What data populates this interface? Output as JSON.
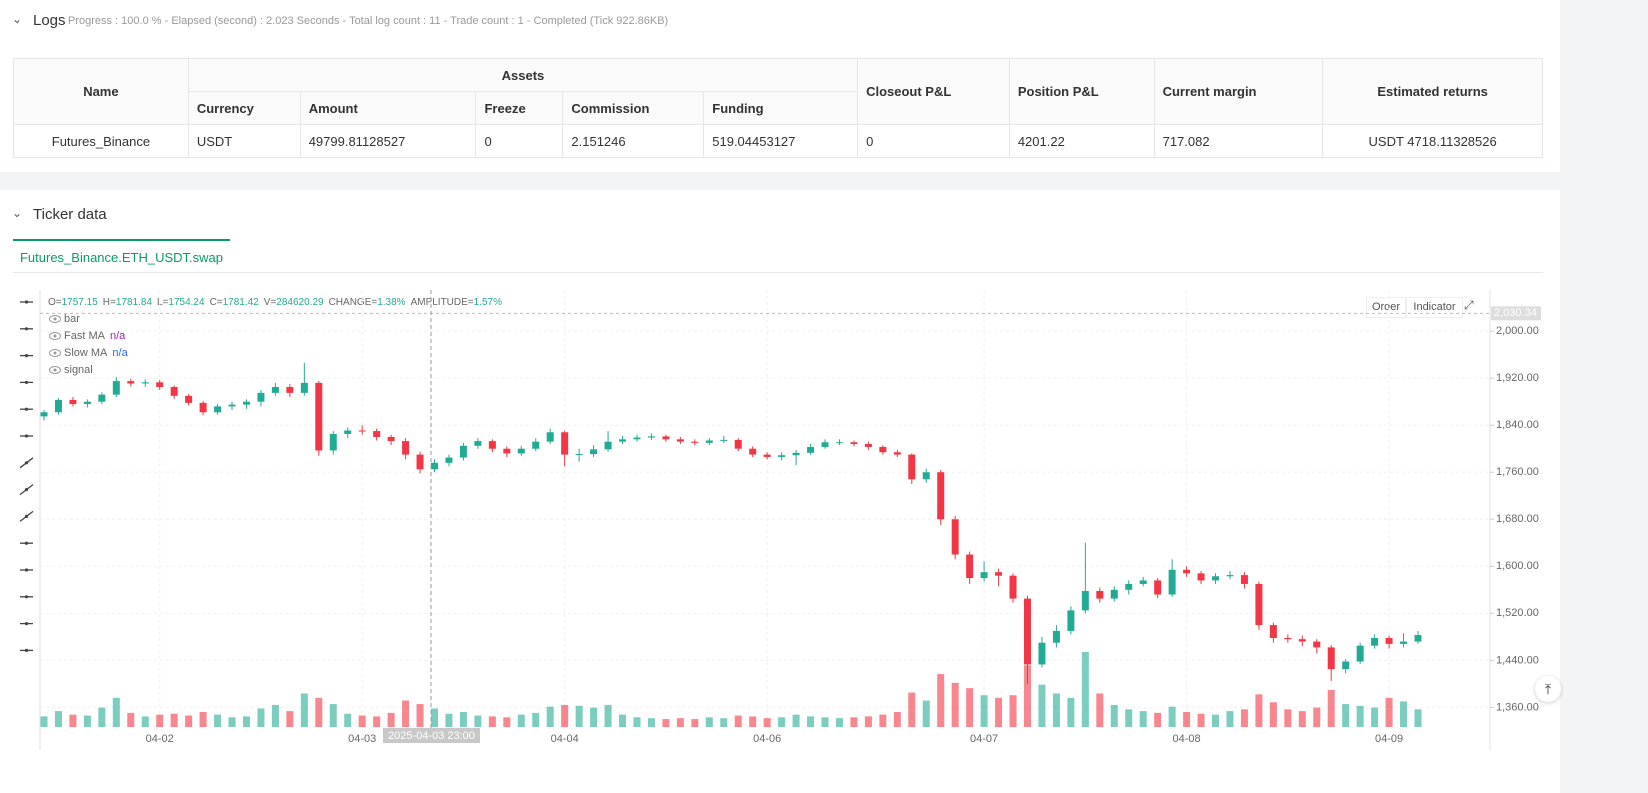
{
  "logs": {
    "title": "Logs",
    "summary": "Progress : 100.0 % - Elapsed (second) : 2.023 Seconds - Total log count : 11 - Trade count : 1 - Completed (Tick 922.86KB)"
  },
  "table": {
    "headers": [
      "Name",
      "Assets",
      "Closeout P&L",
      "Position P&L",
      "Current margin",
      "Estimated returns"
    ],
    "subheaders": [
      "Currency",
      "Amount",
      "Freeze",
      "Commission",
      "Funding"
    ],
    "rows": [
      [
        "Futures_Binance",
        "USDT",
        "49799.81128527",
        "0",
        "2.151246",
        "519.04453127",
        "0",
        "4201.22",
        "717.082",
        "USDT 4718.11328526"
      ]
    ]
  },
  "ticker": {
    "title": "Ticker data",
    "tab": "Futures_Binance.ETH_USDT.swap",
    "buttons": [
      "Order",
      "Indicator"
    ]
  },
  "chart_data": {
    "type": "candlestick",
    "info": [
      {
        "key": "O=",
        "value": 1757.15
      },
      {
        "key": "H=",
        "value": 1781.84
      },
      {
        "key": "L=",
        "value": 1754.24
      },
      {
        "key": "C=",
        "value": 1781.42
      },
      {
        "key": "V=",
        "value": 284620.29
      },
      {
        "key": "CHANGE=",
        "value": "1.38%"
      },
      {
        "key": "AMPLITUDE=",
        "value": "1.57%"
      }
    ],
    "indicators": [
      {
        "name": "bar"
      },
      {
        "name": "Fast MA",
        "value": "n/a",
        "color": "#9c27b0"
      },
      {
        "name": "Slow MA",
        "value": "n/a",
        "color": "#2962ff"
      },
      {
        "name": "signal"
      }
    ],
    "categories": [
      null,
      null,
      null,
      null,
      null,
      null,
      null,
      null,
      "04-02",
      null,
      null,
      null,
      null,
      null,
      null,
      null,
      null,
      null,
      null,
      null,
      null,
      null,
      "04-03",
      null,
      null,
      null,
      null,
      null,
      null,
      null,
      null,
      null,
      null,
      null,
      null,
      null,
      "04-04",
      null,
      null,
      null,
      null,
      null,
      null,
      null,
      null,
      null,
      null,
      null,
      null,
      null,
      "04-06",
      null,
      null,
      null,
      null,
      null,
      null,
      null,
      null,
      null,
      null,
      null,
      null,
      null,
      null,
      "04-07",
      null,
      null,
      null,
      null,
      null,
      null,
      null,
      null,
      null,
      null,
      null,
      null,
      null,
      "04-08",
      null,
      null,
      null,
      null,
      null,
      null,
      null,
      null,
      null,
      null,
      null,
      null,
      null,
      "04-09",
      null,
      null
    ],
    "open": [
      1855,
      1862,
      1883,
      1876,
      1880,
      1892,
      1915,
      1911,
      1913,
      1905,
      1890,
      1878,
      1862,
      1872,
      1875,
      1880,
      1895,
      1905,
      1895,
      1912,
      1797,
      1825,
      1831,
      1830,
      1820,
      1813,
      1790,
      1765,
      1776,
      1785,
      1805,
      1813,
      1800,
      1792,
      1800,
      1812,
      1828,
      1790,
      1791,
      1799,
      1812,
      1816,
      1819,
      1821,
      1816,
      1812,
      1810,
      1814,
      1815,
      1800,
      1790,
      1786,
      1789,
      1793,
      1803,
      1811,
      1811,
      1808,
      1803,
      1794,
      1790,
      1748,
      1760,
      1680,
      1620,
      1580,
      1590,
      1584,
      1545,
      1433,
      1470,
      1490,
      1525,
      1558,
      1545,
      1560,
      1570,
      1576,
      1552,
      1594,
      1588,
      1576,
      1583,
      1585,
      1570,
      1500,
      1478,
      1476,
      1472,
      1462,
      1425,
      1438,
      1465,
      1478,
      1468,
      1472
    ],
    "high": [
      1866,
      1886,
      1888,
      1884,
      1896,
      1922,
      1919,
      1918,
      1917,
      1908,
      1893,
      1881,
      1876,
      1880,
      1884,
      1900,
      1912,
      1910,
      1946,
      1915,
      1830,
      1836,
      1840,
      1834,
      1824,
      1818,
      1795,
      1782,
      1790,
      1810,
      1818,
      1816,
      1804,
      1805,
      1818,
      1834,
      1831,
      1800,
      1806,
      1830,
      1822,
      1824,
      1826,
      1824,
      1820,
      1816,
      1818,
      1822,
      1818,
      1804,
      1794,
      1794,
      1798,
      1808,
      1816,
      1816,
      1814,
      1812,
      1806,
      1798,
      1792,
      1766,
      1764,
      1686,
      1625,
      1608,
      1596,
      1588,
      1550,
      1480,
      1500,
      1532,
      1640,
      1564,
      1566,
      1576,
      1582,
      1580,
      1612,
      1600,
      1592,
      1588,
      1592,
      1590,
      1574,
      1504,
      1484,
      1482,
      1476,
      1466,
      1442,
      1470,
      1484,
      1482,
      1486,
      1490
    ],
    "low": [
      1848,
      1858,
      1872,
      1870,
      1876,
      1888,
      1906,
      1905,
      1900,
      1885,
      1874,
      1857,
      1858,
      1866,
      1868,
      1872,
      1890,
      1888,
      1890,
      1788,
      1790,
      1818,
      1824,
      1814,
      1806,
      1782,
      1758,
      1760,
      1770,
      1780,
      1800,
      1794,
      1786,
      1788,
      1796,
      1808,
      1770,
      1778,
      1786,
      1795,
      1808,
      1812,
      1815,
      1812,
      1808,
      1806,
      1806,
      1810,
      1796,
      1786,
      1782,
      1780,
      1772,
      1790,
      1800,
      1806,
      1804,
      1798,
      1790,
      1786,
      1740,
      1742,
      1670,
      1612,
      1570,
      1574,
      1566,
      1538,
      1400,
      1428,
      1462,
      1484,
      1520,
      1538,
      1540,
      1552,
      1566,
      1546,
      1548,
      1582,
      1570,
      1570,
      1578,
      1562,
      1492,
      1470,
      1470,
      1464,
      1452,
      1405,
      1418,
      1434,
      1460,
      1460,
      1462,
      1468
    ],
    "close": [
      1862,
      1883,
      1876,
      1880,
      1892,
      1915,
      1911,
      1913,
      1905,
      1890,
      1878,
      1862,
      1872,
      1875,
      1880,
      1895,
      1905,
      1895,
      1912,
      1797,
      1825,
      1831,
      1830,
      1820,
      1813,
      1790,
      1765,
      1776,
      1785,
      1805,
      1813,
      1800,
      1792,
      1800,
      1812,
      1828,
      1790,
      1791,
      1799,
      1812,
      1816,
      1819,
      1821,
      1816,
      1812,
      1810,
      1814,
      1815,
      1800,
      1790,
      1786,
      1789,
      1793,
      1803,
      1811,
      1811,
      1808,
      1803,
      1794,
      1790,
      1748,
      1760,
      1680,
      1620,
      1580,
      1590,
      1584,
      1545,
      1433,
      1470,
      1490,
      1525,
      1558,
      1545,
      1560,
      1570,
      1576,
      1552,
      1594,
      1588,
      1576,
      1583,
      1585,
      1570,
      1500,
      1478,
      1476,
      1472,
      1462,
      1425,
      1438,
      1465,
      1478,
      1468,
      1472,
      1483
    ],
    "volume": [
      120000,
      180000,
      140000,
      130000,
      220000,
      330000,
      160000,
      120000,
      140000,
      150000,
      130000,
      170000,
      140000,
      110000,
      120000,
      210000,
      250000,
      180000,
      380000,
      330000,
      260000,
      150000,
      130000,
      120000,
      160000,
      300000,
      260000,
      210000,
      150000,
      170000,
      130000,
      120000,
      110000,
      140000,
      160000,
      230000,
      250000,
      240000,
      220000,
      250000,
      140000,
      110000,
      100000,
      90000,
      100000,
      90000,
      110000,
      100000,
      130000,
      120000,
      100000,
      110000,
      140000,
      120000,
      110000,
      100000,
      110000,
      120000,
      140000,
      170000,
      390000,
      300000,
      600000,
      500000,
      440000,
      360000,
      330000,
      360000,
      700000,
      480000,
      380000,
      330000,
      850000,
      380000,
      250000,
      200000,
      180000,
      160000,
      230000,
      170000,
      150000,
      140000,
      180000,
      200000,
      370000,
      280000,
      200000,
      180000,
      220000,
      420000,
      260000,
      240000,
      220000,
      330000,
      290000,
      200000
    ],
    "up_color": "#22ab94",
    "down_color": "#f23645",
    "ylim": [
      1296,
      2070
    ],
    "yticks": [
      {
        "value": 1360,
        "label": "1,360.00"
      },
      {
        "value": 1440,
        "label": "1,440.00"
      },
      {
        "value": 1520,
        "label": "1,520.00"
      },
      {
        "value": 1600,
        "label": "1,600.00"
      },
      {
        "value": 1680,
        "label": "1,680.00"
      },
      {
        "value": 1760,
        "label": "1,760.00"
      },
      {
        "value": 1840,
        "label": "1,840.00"
      },
      {
        "value": 1920,
        "label": "1,920.00"
      },
      {
        "value": 2000,
        "label": "2,000.00"
      }
    ],
    "price_line": {
      "value": 2030.34,
      "label": "2,030.34"
    },
    "crosshair_label": "2025-04-03 23:00",
    "grid": true
  }
}
